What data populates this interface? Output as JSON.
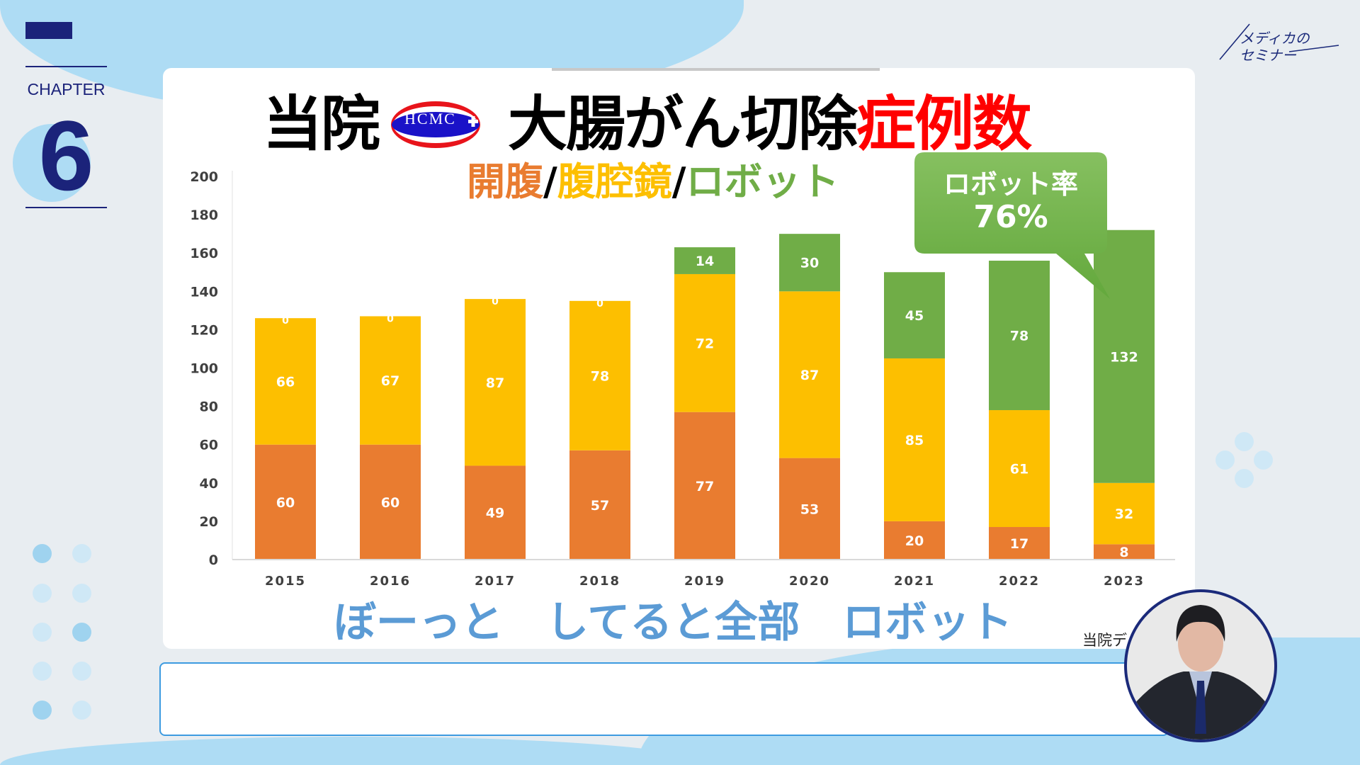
{
  "chapter": {
    "label": "CHAPTER",
    "number": "6"
  },
  "brand": {
    "logo_text": "メディカのセミナー"
  },
  "slide": {
    "title_part1": "当院",
    "logo_text": "HCMC",
    "title_part2": "大腸がん切除",
    "title_part3": "症例数",
    "subtitle": {
      "open": "開腹",
      "sep": "/",
      "lap": "腹腔鏡",
      "robot": "ロボット"
    },
    "callout": {
      "line1": "ロボット率",
      "line2": "76%"
    },
    "bottom_text": "ぼーっと　してると全部　ロボット",
    "source": "当院デ"
  },
  "colors": {
    "open": "#e97c30",
    "laparoscopic": "#fdbf00",
    "robot": "#70ad47",
    "title_red": "#ff0000",
    "accent_blue": "#5b9bd5",
    "navy": "#1b2a7a"
  },
  "chart_data": {
    "type": "bar",
    "stacked": true,
    "categories": [
      "2015",
      "2016",
      "2017",
      "2018",
      "2019",
      "2020",
      "2021",
      "2022",
      "2023"
    ],
    "series": [
      {
        "name": "開腹",
        "values": [
          60,
          60,
          49,
          57,
          77,
          53,
          20,
          17,
          8
        ]
      },
      {
        "name": "腹腔鏡",
        "values": [
          66,
          67,
          87,
          78,
          72,
          87,
          85,
          61,
          32
        ]
      },
      {
        "name": "ロボット",
        "values": [
          0,
          0,
          0,
          0,
          14,
          30,
          45,
          78,
          132
        ]
      }
    ],
    "ylim": [
      0,
      200
    ],
    "yticks": [
      0,
      20,
      40,
      60,
      80,
      100,
      120,
      140,
      160,
      180,
      200
    ],
    "grid": false
  },
  "caption": {
    "text": ""
  }
}
